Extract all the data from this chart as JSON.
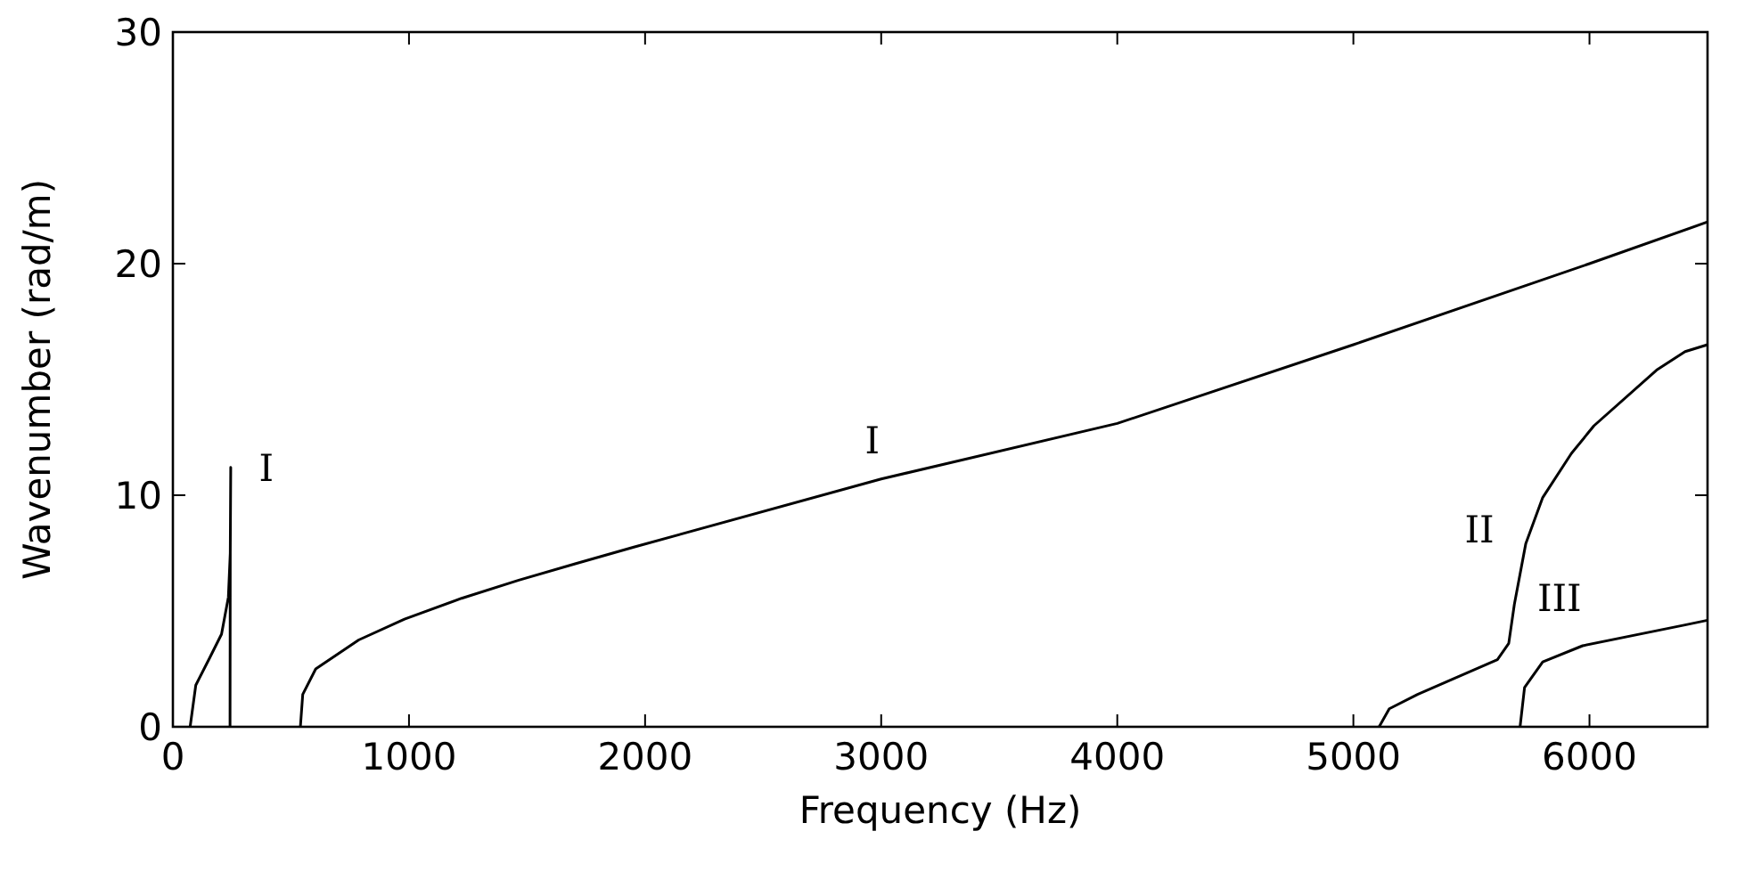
{
  "chart_data": {
    "type": "line",
    "xlabel": "Frequency (Hz)",
    "ylabel": "Wavenumber (rad/m)",
    "xlim": [
      0,
      6500
    ],
    "ylim": [
      0,
      30
    ],
    "xticks": [
      0,
      1000,
      2000,
      3000,
      4000,
      5000,
      6000
    ],
    "yticks": [
      0,
      10,
      20,
      30
    ],
    "grid": false,
    "marker": "none",
    "line_style": "solid",
    "series": [
      {
        "name": "I",
        "color": "#000000",
        "x": [
          73,
          97,
          157,
          206,
          235,
          243,
          245,
          243,
          242
        ],
        "values": [
          0,
          1.8,
          3.0,
          4.0,
          5.6,
          7.5,
          11.2,
          7.5,
          0
        ]
      },
      {
        "name": "I",
        "color": "#000000",
        "x": [
          540,
          550,
          605,
          787,
          981,
          1223,
          1465,
          1707,
          1949,
          3000,
          4000,
          5000,
          6000,
          6500
        ],
        "values": [
          0,
          1.4,
          2.5,
          3.75,
          4.65,
          5.55,
          6.33,
          7.05,
          7.75,
          10.7,
          13.1,
          16.5,
          20.0,
          21.8
        ]
      },
      {
        "name": "II",
        "color": "#000000",
        "x": [
          5109,
          5152,
          5272,
          5610,
          5658,
          5682,
          5730,
          5802,
          5923,
          6019,
          6284,
          6405,
          6500
        ],
        "values": [
          0,
          0.78,
          1.4,
          2.9,
          3.6,
          5.3,
          7.9,
          9.9,
          11.8,
          13.0,
          15.4,
          16.2,
          16.5
        ]
      },
      {
        "name": "III",
        "color": "#000000",
        "x": [
          5706,
          5725,
          5802,
          5971,
          6405,
          6500
        ],
        "values": [
          0,
          1.7,
          2.8,
          3.5,
          4.4,
          4.6
        ]
      }
    ]
  }
}
